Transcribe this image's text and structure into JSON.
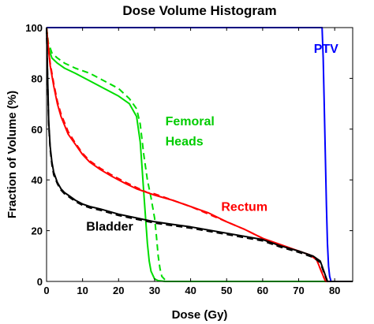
{
  "chart_data": {
    "type": "line",
    "title": "Dose Volume Histogram",
    "xlabel": "Dose (Gy)",
    "ylabel": "Fraction of Volume (%)",
    "xlim": [
      0,
      85
    ],
    "ylim": [
      0,
      100
    ],
    "x_ticks": [
      0,
      10,
      20,
      30,
      40,
      50,
      60,
      70,
      80
    ],
    "y_ticks": [
      0,
      20,
      40,
      60,
      80,
      100
    ],
    "grid": false,
    "legend": "none",
    "annotations": [
      {
        "text": "PTV",
        "color": "#0000ff",
        "x": 74.2,
        "y": 90
      },
      {
        "text": "Femoral",
        "color": "#00cc00",
        "x": 33,
        "y": 61.5
      },
      {
        "text": "Heads",
        "color": "#00cc00",
        "x": 33,
        "y": 53.5
      },
      {
        "text": "Rectum",
        "color": "#ff0000",
        "x": 48.5,
        "y": 27.8
      },
      {
        "text": "Bladder",
        "color": "#000000",
        "x": 11,
        "y": 20
      }
    ],
    "series": [
      {
        "color": "#0000ff",
        "dash": false,
        "x": [
          0,
          76.5,
          76.8,
          77.1,
          77.4,
          77.7,
          78.0,
          78.3,
          78.6,
          79.0,
          85
        ],
        "y": [
          100,
          100,
          88,
          70,
          50,
          30,
          15,
          6,
          2,
          0,
          0
        ]
      },
      {
        "color": "#00dd00",
        "dash": false,
        "x": [
          0,
          0.5,
          1.5,
          3,
          5,
          8,
          12,
          16,
          20,
          23,
          25,
          26,
          26.5,
          27,
          27.5,
          28,
          28.5,
          29,
          30,
          31,
          33,
          85
        ],
        "y": [
          100,
          92,
          88,
          86,
          84,
          82,
          79,
          76,
          73,
          70,
          65,
          55,
          45,
          35,
          25,
          15,
          8,
          4,
          1,
          0.3,
          0,
          0
        ]
      },
      {
        "color": "#00dd00",
        "dash": true,
        "x": [
          0,
          0.5,
          1.5,
          3,
          5,
          8,
          12,
          16,
          20,
          23,
          25,
          26,
          27,
          28,
          29,
          30,
          30.5,
          31,
          31.5,
          32,
          33,
          34,
          85
        ],
        "y": [
          100,
          94,
          90,
          88,
          86,
          84,
          82,
          79,
          76,
          72,
          68,
          62,
          50,
          40,
          33,
          25,
          18,
          10,
          5,
          2,
          0.5,
          0,
          0
        ]
      },
      {
        "color": "#ff0000",
        "dash": false,
        "x": [
          0,
          0.5,
          1,
          2,
          3,
          4,
          6,
          8,
          10,
          12,
          15,
          18,
          20,
          22,
          25,
          28,
          30,
          35,
          40,
          45,
          50,
          55,
          60,
          65,
          70,
          73,
          75,
          76,
          77,
          77.5,
          85
        ],
        "y": [
          100,
          92,
          85,
          77,
          70,
          65,
          58,
          54,
          50,
          47,
          44,
          41.5,
          40,
          38.5,
          36.5,
          35,
          34,
          32,
          29.5,
          27,
          23.5,
          20.5,
          17,
          14.5,
          12,
          10.5,
          8.5,
          5,
          1.5,
          0,
          0
        ]
      },
      {
        "color": "#ff0000",
        "dash": true,
        "x": [
          0,
          0.5,
          1,
          2,
          3,
          4,
          6,
          8,
          10,
          12,
          15,
          18,
          20,
          22,
          25,
          28,
          30,
          32,
          35,
          40,
          45,
          50,
          55,
          60,
          62,
          65,
          70,
          73,
          75,
          76,
          77,
          77.5,
          85
        ],
        "y": [
          100,
          93,
          86,
          78,
          71,
          66,
          59,
          54.5,
          50.5,
          47.5,
          44.5,
          42,
          40.5,
          39,
          37,
          35,
          34.5,
          33.5,
          32,
          29.5,
          26.5,
          23.5,
          20.5,
          17,
          15,
          14,
          12,
          10.5,
          8.5,
          5,
          1.5,
          0,
          0
        ]
      },
      {
        "color": "#000000",
        "dash": false,
        "x": [
          0,
          0.3,
          0.6,
          1,
          1.5,
          2,
          3,
          4,
          5,
          6,
          8,
          10,
          12,
          15,
          20,
          25,
          30,
          35,
          40,
          50,
          60,
          65,
          70,
          74,
          76,
          77,
          78,
          85
        ],
        "y": [
          100,
          80,
          63,
          53,
          47,
          43,
          39,
          36.5,
          35,
          34,
          32,
          30.5,
          29.5,
          28.5,
          26.5,
          25,
          23.5,
          22.5,
          21.5,
          19,
          16.5,
          14,
          12,
          10,
          8,
          4,
          0,
          0
        ]
      },
      {
        "color": "#000000",
        "dash": true,
        "x": [
          0,
          0.3,
          0.6,
          1,
          1.5,
          2,
          3,
          4,
          5,
          6,
          8,
          10,
          12,
          15,
          20,
          25,
          30,
          35,
          40,
          50,
          60,
          65,
          70,
          74,
          76,
          77,
          78,
          85
        ],
        "y": [
          100,
          79,
          62,
          52,
          46,
          42,
          38.5,
          36,
          34.5,
          33.5,
          31.5,
          30,
          29,
          28,
          26,
          24.5,
          23,
          22,
          21,
          18.5,
          16,
          13.5,
          11.5,
          9.5,
          7.5,
          3.5,
          0,
          0
        ]
      }
    ]
  }
}
